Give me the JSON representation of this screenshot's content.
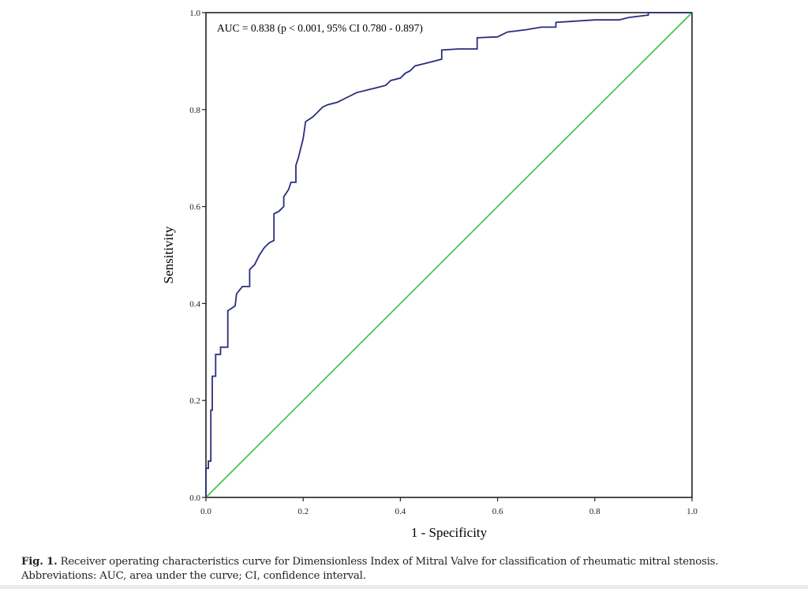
{
  "chart_data": {
    "type": "line",
    "title": "",
    "xlabel": "1 - Specificity",
    "ylabel": "Sensitivity",
    "xlim": [
      0,
      1
    ],
    "ylim": [
      0,
      1
    ],
    "xticks": [
      "0.0",
      "0.2",
      "0.4",
      "0.6",
      "0.8",
      "1.0"
    ],
    "yticks": [
      "0.0",
      "0.2",
      "0.4",
      "0.6",
      "0.8",
      "1.0"
    ],
    "grid": false,
    "annotation": "AUC = 0.838 (p < 0.001, 95% CI 0.780 - 0.897)",
    "series": [
      {
        "name": "ROC curve",
        "color": "#2a2e7c",
        "x": [
          0,
          0,
          0.005,
          0.005,
          0.01,
          0.01,
          0.013,
          0.013,
          0.02,
          0.02,
          0.03,
          0.03,
          0.045,
          0.045,
          0.06,
          0.063,
          0.075,
          0.09,
          0.09,
          0.1,
          0.11,
          0.12,
          0.13,
          0.14,
          0.14,
          0.15,
          0.16,
          0.16,
          0.17,
          0.175,
          0.185,
          0.185,
          0.19,
          0.195,
          0.2,
          0.205,
          0.22,
          0.23,
          0.24,
          0.25,
          0.27,
          0.29,
          0.31,
          0.33,
          0.35,
          0.37,
          0.38,
          0.4,
          0.41,
          0.42,
          0.43,
          0.45,
          0.47,
          0.485,
          0.485,
          0.52,
          0.558,
          0.558,
          0.6,
          0.62,
          0.66,
          0.69,
          0.72,
          0.72,
          0.8,
          0.85,
          0.87,
          0.91,
          0.91,
          1
        ],
        "y": [
          0,
          0.06,
          0.06,
          0.075,
          0.075,
          0.18,
          0.18,
          0.25,
          0.25,
          0.295,
          0.295,
          0.31,
          0.31,
          0.385,
          0.395,
          0.42,
          0.435,
          0.435,
          0.47,
          0.48,
          0.5,
          0.515,
          0.525,
          0.53,
          0.585,
          0.59,
          0.6,
          0.62,
          0.635,
          0.65,
          0.65,
          0.685,
          0.7,
          0.72,
          0.74,
          0.775,
          0.785,
          0.795,
          0.805,
          0.81,
          0.815,
          0.825,
          0.835,
          0.84,
          0.845,
          0.85,
          0.86,
          0.865,
          0.875,
          0.88,
          0.89,
          0.895,
          0.9,
          0.904,
          0.923,
          0.925,
          0.925,
          0.948,
          0.95,
          0.96,
          0.965,
          0.97,
          0.97,
          0.98,
          0.985,
          0.985,
          0.99,
          0.995,
          1,
          1
        ]
      },
      {
        "name": "Reference line",
        "color": "#3dbf4b",
        "x": [
          0,
          1
        ],
        "y": [
          0,
          1
        ]
      }
    ]
  },
  "caption": {
    "label": "Fig. 1.",
    "line1": "Receiver operating characteristics curve for Dimensionless Index of Mitral Valve for classification of rheumatic mitral stenosis.",
    "line2": "Abbreviations: AUC, area under the curve; CI, confidence interval."
  }
}
